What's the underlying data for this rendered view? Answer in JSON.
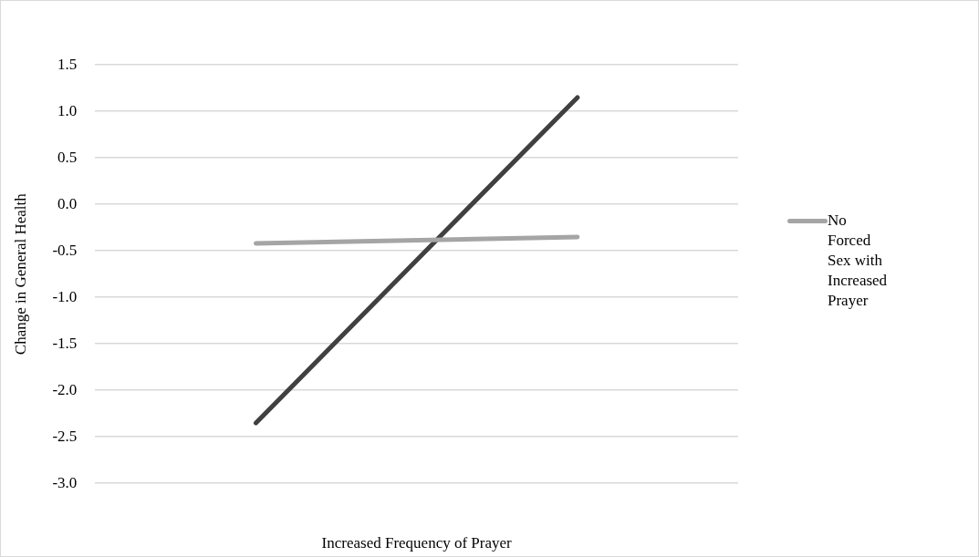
{
  "chart_data": {
    "type": "line",
    "xlabel": "Increased Frequency of Prayer",
    "ylabel": "Change in General Health",
    "categories": [
      null,
      null
    ],
    "series": [
      {
        "name": "No Forced Sex with Increased Prayer",
        "color": "#a5a5a5",
        "values": [
          -0.42,
          -0.35
        ]
      },
      {
        "color": "#404040",
        "values": [
          -2.35,
          1.15
        ]
      }
    ],
    "ylim": [
      -3.0,
      1.5
    ],
    "yticks": [
      {
        "value": -3,
        "label": "-3.0"
      },
      {
        "value": -2.5,
        "label": "-2.5"
      },
      {
        "value": -2,
        "label": "-2.0"
      },
      {
        "value": -1.5,
        "label": "-1.5"
      },
      {
        "value": -1,
        "label": "-1.0"
      },
      {
        "value": -0.5,
        "label": "-0.5"
      },
      {
        "value": 0,
        "label": "0.0"
      },
      {
        "value": 0.5,
        "label": "0.5"
      },
      {
        "value": 1,
        "label": "1.0"
      },
      {
        "value": 1.5,
        "label": "1.5"
      }
    ],
    "grid": "y",
    "legend": "right",
    "marker": "none",
    "line_style": "solid"
  }
}
